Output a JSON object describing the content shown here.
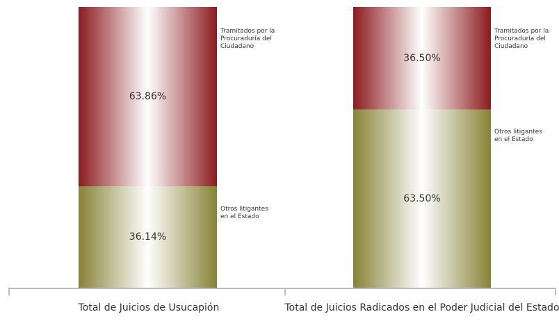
{
  "chart_data": {
    "type": "stacked_bar",
    "categories": [
      "Total de Juicios de Usucapión",
      "Total de Juicios Radicados en el Poder Judicial del Estado"
    ],
    "series": [
      {
        "name": "Otros litigantes en el Estado",
        "color": "#878237",
        "values": [
          36.14,
          63.5
        ],
        "value_labels": [
          "36.14%",
          "63.50%"
        ]
      },
      {
        "name": "Tramitados por la Procuraduría del Ciudadano",
        "color": "#8b1a1e",
        "values": [
          63.86,
          36.5
        ],
        "value_labels": [
          "63.86%",
          "36.50%"
        ]
      }
    ],
    "ylim": [
      0,
      100
    ]
  }
}
